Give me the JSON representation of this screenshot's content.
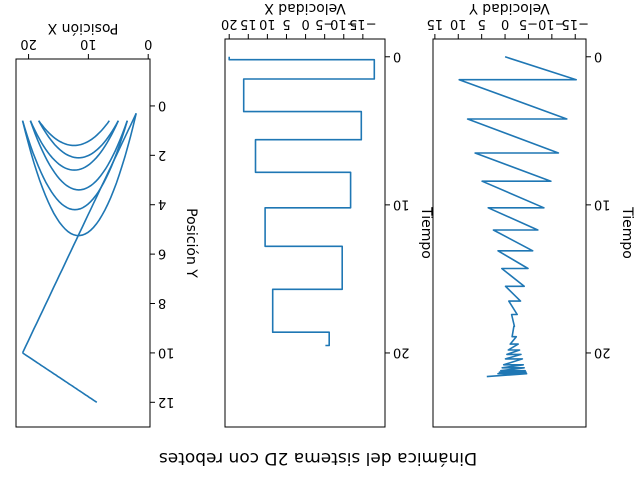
{
  "figure": {
    "title": "Dinámica del sistema 2D con rebotes",
    "orientation": "rotated 180 degrees"
  },
  "chart_data": [
    {
      "type": "line",
      "id": "vy",
      "xlabel": "Velocidad Y",
      "ylabel": "Tiempo",
      "xlim": [
        -17.3,
        15.4
      ],
      "ylim": [
        -1.2,
        25
      ],
      "xticks": [
        -15,
        -10,
        -5,
        0,
        5,
        10,
        15
      ],
      "yticks": [
        0,
        10,
        20
      ],
      "color": "#1f77b4",
      "points": [
        [
          0,
          0
        ],
        [
          -15.2,
          1.55
        ],
        [
          9.8,
          1.55
        ],
        [
          -13.2,
          4.2
        ],
        [
          8.0,
          4.2
        ],
        [
          -11.4,
          6.5
        ],
        [
          6.4,
          6.5
        ],
        [
          -9.8,
          8.4
        ],
        [
          4.9,
          8.4
        ],
        [
          -8.3,
          10.2
        ],
        [
          3.6,
          10.2
        ],
        [
          -7.0,
          11.7
        ],
        [
          2.5,
          11.7
        ],
        [
          -5.9,
          13.1
        ],
        [
          1.5,
          13.1
        ],
        [
          -4.9,
          14.3
        ],
        [
          0.7,
          14.3
        ],
        [
          -4.1,
          15.5
        ],
        [
          -0.1,
          15.5
        ],
        [
          -3.3,
          16.5
        ],
        [
          -0.8,
          16.5
        ],
        [
          -2.6,
          17.4
        ],
        [
          -1.4,
          17.4
        ],
        [
          -2.0,
          18.2
        ],
        [
          -1.9,
          18.2
        ],
        [
          -1.5,
          18.9
        ],
        [
          -2.4,
          18.9
        ],
        [
          -1.1,
          19.4
        ],
        [
          -2.8,
          19.4
        ],
        [
          -0.7,
          19.8
        ],
        [
          -3.1,
          19.8
        ],
        [
          -0.4,
          20.1
        ],
        [
          -3.4,
          20.1
        ],
        [
          -0.1,
          20.4
        ],
        [
          -3.7,
          20.4
        ],
        [
          0.3,
          20.8
        ],
        [
          -3.9,
          20.8
        ],
        [
          0.6,
          21.0
        ],
        [
          -4.1,
          21.0
        ],
        [
          0.9,
          21.2
        ],
        [
          -4.3,
          21.2
        ],
        [
          1.2,
          21.3
        ],
        [
          -4.5,
          21.3
        ],
        [
          1.5,
          21.4
        ],
        [
          -4.6,
          21.4
        ],
        [
          3.9,
          21.6
        ]
      ]
    },
    {
      "type": "line",
      "id": "vx",
      "xlabel": "Velocidad X",
      "ylabel": "Tiempo",
      "xlim": [
        -20.8,
        21.1
      ],
      "ylim": [
        -1.2,
        25
      ],
      "xticks": [
        -15,
        -10,
        -5,
        0,
        5,
        10,
        15,
        20
      ],
      "yticks": [
        0,
        10,
        20
      ],
      "color": "#1f77b4",
      "points": [
        [
          20.0,
          0
        ],
        [
          20.0,
          0.2
        ],
        [
          -18.0,
          0.2
        ],
        [
          -18.0,
          1.5
        ],
        [
          16.2,
          1.5
        ],
        [
          16.2,
          3.7
        ],
        [
          -14.6,
          3.7
        ],
        [
          -14.6,
          5.6
        ],
        [
          13.1,
          5.6
        ],
        [
          13.1,
          7.8
        ],
        [
          -11.8,
          7.8
        ],
        [
          -11.8,
          10.2
        ],
        [
          10.6,
          10.2
        ],
        [
          10.6,
          12.8
        ],
        [
          -9.6,
          12.8
        ],
        [
          -9.6,
          15.7
        ],
        [
          8.6,
          15.7
        ],
        [
          8.6,
          18.6
        ],
        [
          -6.2,
          18.6
        ],
        [
          -6.2,
          19.5
        ],
        [
          -5.2,
          19.5
        ]
      ]
    },
    {
      "type": "line",
      "id": "trajectory",
      "xlabel": "Posición X",
      "ylabel": "Posición Y",
      "xlim": [
        -0.3,
        22.1
      ],
      "ylim": [
        -1.9,
        13.0
      ],
      "xticks": [
        0,
        10,
        20
      ],
      "yticks": [
        0,
        2,
        4,
        6,
        8,
        10,
        12
      ],
      "color": "#1f77b4",
      "segments": [
        {
          "x0": 8.6,
          "y0": 12.0,
          "x1": 21.0,
          "y1": 10.0,
          "peak": 0
        },
        {
          "x0": 21.0,
          "y0": 10.0,
          "x1": 2.0,
          "y1": 0.3,
          "peak": 0
        },
        {
          "x0": 2.0,
          "y0": 0.3,
          "x1": 21.0,
          "y1": 0.6,
          "peak": 4.8
        },
        {
          "x0": 21.0,
          "y0": 0.6,
          "x1": 3.5,
          "y1": 0.6,
          "peak": 3.6
        },
        {
          "x0": 3.5,
          "y0": 0.6,
          "x1": 19.7,
          "y1": 0.6,
          "peak": 2.8
        },
        {
          "x0": 19.7,
          "y0": 0.6,
          "x1": 5.0,
          "y1": 0.6,
          "peak": 2.0
        },
        {
          "x0": 5.0,
          "y0": 0.6,
          "x1": 18.3,
          "y1": 0.6,
          "peak": 1.5
        },
        {
          "x0": 18.3,
          "y0": 0.6,
          "x1": 6.5,
          "y1": 0.6,
          "peak": 1.0
        }
      ]
    }
  ]
}
